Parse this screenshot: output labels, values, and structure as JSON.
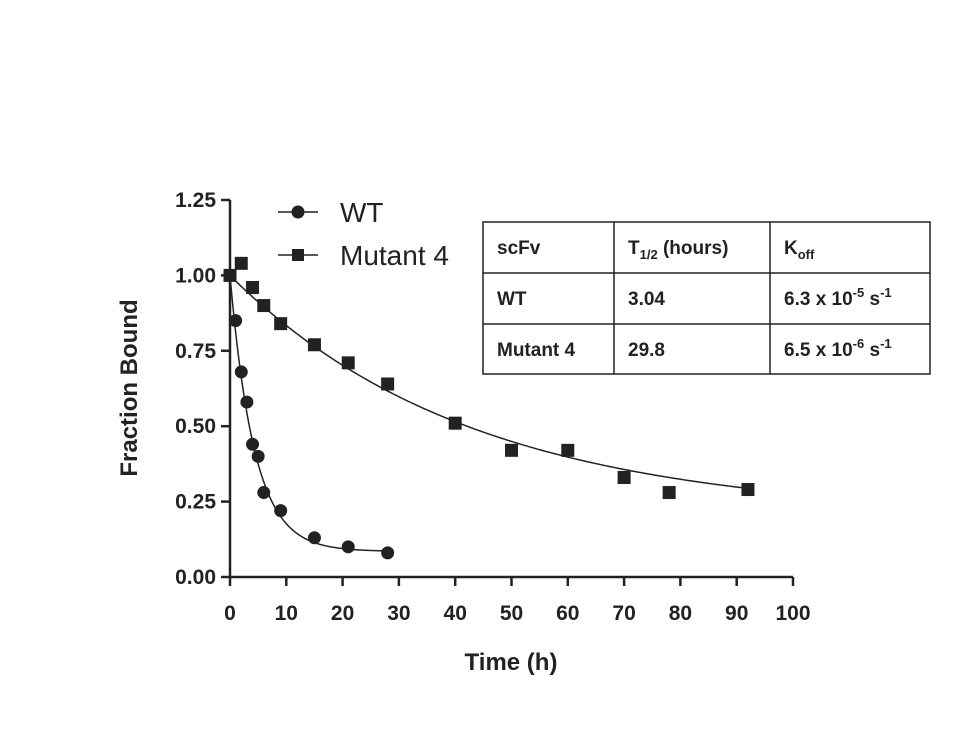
{
  "chart_data": {
    "type": "scatter",
    "title": "",
    "xlabel": "Time (h)",
    "ylabel": "Fraction Bound",
    "xlim": [
      0,
      100
    ],
    "ylim": [
      0,
      1.25
    ],
    "x_ticks": [
      "0",
      "10",
      "20",
      "30",
      "40",
      "50",
      "60",
      "70",
      "80",
      "90",
      "100"
    ],
    "y_ticks": [
      "0.00",
      "0.25",
      "0.50",
      "0.75",
      "1.00",
      "1.25"
    ],
    "legend_position": "top-left",
    "series": [
      {
        "name": "WT",
        "marker": "circle",
        "x": [
          0,
          1,
          2,
          3,
          4,
          5,
          6,
          9,
          15,
          21,
          28
        ],
        "y": [
          1.0,
          0.85,
          0.68,
          0.58,
          0.44,
          0.4,
          0.28,
          0.22,
          0.13,
          0.1,
          0.08
        ],
        "fit": {
          "plateau": 0.085,
          "k": 0.23,
          "x_max": 28
        }
      },
      {
        "name": "Mutant 4",
        "marker": "square",
        "x": [
          0,
          2,
          4,
          6,
          9,
          15,
          21,
          28,
          40,
          50,
          60,
          70,
          78,
          92
        ],
        "y": [
          1.0,
          1.04,
          0.96,
          0.9,
          0.84,
          0.77,
          0.71,
          0.64,
          0.51,
          0.42,
          0.42,
          0.33,
          0.28,
          0.29
        ],
        "fit": {
          "plateau": 0.2,
          "k": 0.0233,
          "x_max": 92
        }
      }
    ]
  },
  "table": {
    "headers": {
      "col1": "scFv",
      "col2_main": "T",
      "col2_sub": "1/2",
      "col2_tail": " (hours)",
      "col3_main": "K",
      "col3_sub": "off"
    },
    "rows": [
      {
        "scfv": "WT",
        "t_half": "3.04",
        "koff_base": "6.3 x 10",
        "koff_exp": "-5",
        "koff_unit": " s",
        "koff_unit_exp": "-1"
      },
      {
        "scfv": "Mutant 4",
        "t_half": "29.8",
        "koff_base": "6.5 x 10",
        "koff_exp": "-6",
        "koff_unit": " s",
        "koff_unit_exp": "-1"
      }
    ]
  }
}
